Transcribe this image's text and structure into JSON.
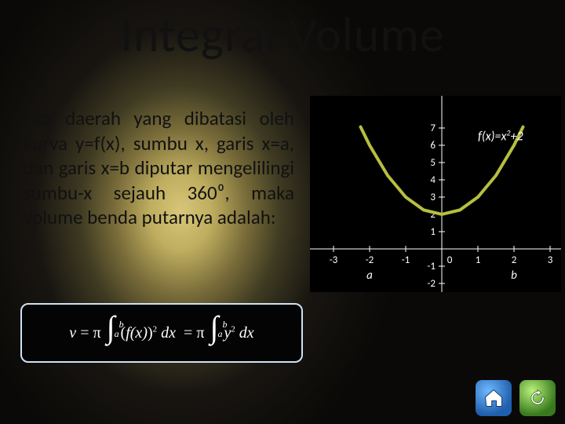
{
  "title": "Integral Volume",
  "body_text": "Jika daerah yang dibatasi oleh kurva y=f(x), sumbu x, garis x=a, dan garis x=b diputar mengelilingi sumbu-x sejauh 360⁰, maka volume benda putarnya adalah:",
  "formula": {
    "lhs_var": "v",
    "pi": "π",
    "lower": "a",
    "upper": "b",
    "expr1_base": "f(x)",
    "expr1_exp": "2",
    "dx": "dx",
    "expr2_base": "y",
    "expr2_exp": "2"
  },
  "chart": {
    "type": "line",
    "equation_label": "f(x)=x²+2",
    "curve_color": "#b7bf3f",
    "curve_width": 4,
    "background_color": "#000000",
    "axis_color": "#ffffff",
    "tick_color": "#ffffff",
    "label_color": "#ffffff",
    "x_ticks": [
      -3,
      -2,
      -1,
      0,
      1,
      2,
      3
    ],
    "y_ticks": [
      -2,
      -1,
      0,
      1,
      2,
      3,
      4,
      5,
      6,
      7
    ],
    "xlim": [
      -3.3,
      3.3
    ],
    "ylim": [
      -2.5,
      7.5
    ],
    "a_marker": {
      "x": -2,
      "label": "a"
    },
    "b_marker": {
      "x": 2,
      "label": "b"
    },
    "curve_points": [
      [
        -2.25,
        7.0625
      ],
      [
        -2,
        6
      ],
      [
        -1.5,
        4.25
      ],
      [
        -1,
        3
      ],
      [
        -0.5,
        2.25
      ],
      [
        0,
        2
      ],
      [
        0.5,
        2.25
      ],
      [
        1,
        3
      ],
      [
        1.5,
        4.25
      ],
      [
        2,
        6
      ],
      [
        2.25,
        7.0625
      ]
    ]
  },
  "nav": {
    "home_label": "home-icon",
    "refresh_label": "refresh-icon"
  }
}
